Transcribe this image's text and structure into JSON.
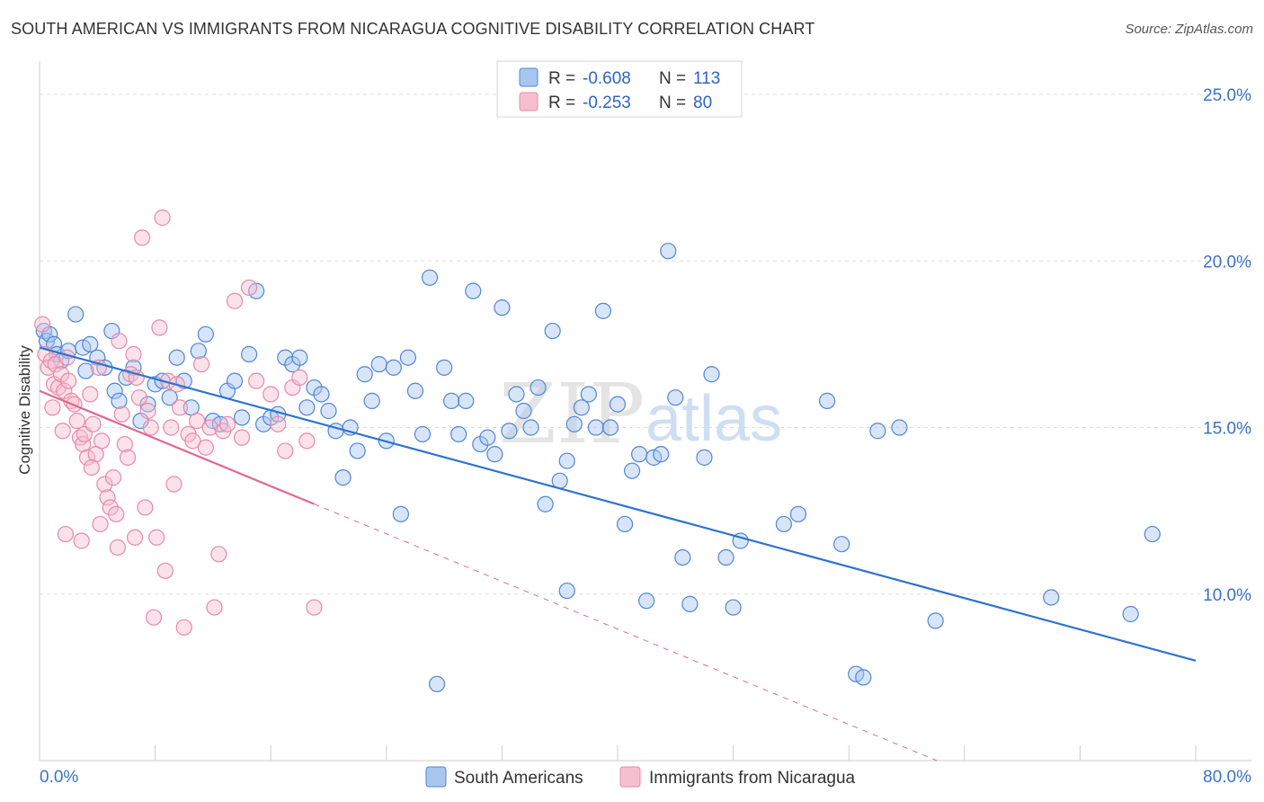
{
  "header": {
    "title": "SOUTH AMERICAN VS IMMIGRANTS FROM NICARAGUA COGNITIVE DISABILITY CORRELATION CHART",
    "source": "Source: ZipAtlas.com"
  },
  "watermark": {
    "part1": "ZIP",
    "part2": "atlas"
  },
  "colors": {
    "blue_fill": "#a9c6ef",
    "blue_stroke": "#4f86d6",
    "blue_line": "#2f72d0",
    "pink_fill": "#f6bfd0",
    "pink_stroke": "#e889a8",
    "pink_line": "#e0688f",
    "grid": "#dddddd",
    "tick_text": "#3b72c4"
  },
  "legend": {
    "rows": [
      {
        "r_label": "R =",
        "r_value": "-0.608",
        "n_label": "N =",
        "n_value": "113"
      },
      {
        "r_label": "R =",
        "r_value": "-0.253",
        "n_label": "N =",
        "n_value": "80"
      }
    ]
  },
  "chart_data": {
    "type": "scatter",
    "title": "SOUTH AMERICAN VS IMMIGRANTS FROM NICARAGUA COGNITIVE DISABILITY CORRELATION CHART",
    "xlabel": "",
    "ylabel": "Cognitive Disability",
    "xlim": [
      0,
      80
    ],
    "ylim": [
      5,
      26
    ],
    "x_tick_labels": [
      "0.0%",
      "80.0%"
    ],
    "y_ticks": [
      10,
      15,
      20,
      25
    ],
    "y_tick_labels": [
      "10.0%",
      "15.0%",
      "20.0%",
      "25.0%"
    ],
    "grid": true,
    "series": [
      {
        "name": "South Americans",
        "color": "blue",
        "r": -0.608,
        "n": 113,
        "trend": {
          "x0": 0,
          "y0": 17.4,
          "x1": 80,
          "y1": 8.0,
          "dashed_from_x": null
        },
        "points": [
          [
            0.3,
            17.9
          ],
          [
            0.5,
            17.6
          ],
          [
            0.7,
            17.8
          ],
          [
            1.0,
            17.5
          ],
          [
            1.2,
            17.2
          ],
          [
            1.5,
            17.0
          ],
          [
            2.0,
            17.3
          ],
          [
            2.5,
            18.4
          ],
          [
            3.0,
            17.4
          ],
          [
            3.2,
            16.7
          ],
          [
            3.5,
            17.5
          ],
          [
            4.0,
            17.1
          ],
          [
            4.5,
            16.8
          ],
          [
            5.0,
            17.9
          ],
          [
            5.2,
            16.1
          ],
          [
            5.5,
            15.8
          ],
          [
            6.0,
            16.5
          ],
          [
            6.5,
            16.8
          ],
          [
            7.0,
            15.2
          ],
          [
            7.5,
            15.7
          ],
          [
            8.0,
            16.3
          ],
          [
            8.5,
            16.4
          ],
          [
            9.0,
            15.9
          ],
          [
            9.5,
            17.1
          ],
          [
            10.0,
            16.4
          ],
          [
            10.5,
            15.6
          ],
          [
            11.0,
            17.3
          ],
          [
            11.5,
            17.8
          ],
          [
            12.0,
            15.2
          ],
          [
            12.5,
            15.1
          ],
          [
            13.0,
            16.1
          ],
          [
            13.5,
            16.4
          ],
          [
            14.0,
            15.3
          ],
          [
            14.5,
            17.2
          ],
          [
            15.0,
            19.1
          ],
          [
            15.5,
            15.1
          ],
          [
            16.0,
            15.3
          ],
          [
            16.5,
            15.4
          ],
          [
            17.0,
            17.1
          ],
          [
            17.5,
            16.9
          ],
          [
            18.0,
            17.1
          ],
          [
            18.5,
            15.6
          ],
          [
            19.0,
            16.2
          ],
          [
            19.5,
            16.0
          ],
          [
            20.0,
            15.5
          ],
          [
            20.5,
            14.9
          ],
          [
            21.0,
            13.5
          ],
          [
            21.5,
            15.0
          ],
          [
            22.0,
            14.3
          ],
          [
            22.5,
            16.6
          ],
          [
            23.0,
            15.8
          ],
          [
            23.5,
            16.9
          ],
          [
            24.0,
            14.6
          ],
          [
            24.5,
            16.8
          ],
          [
            25.0,
            12.4
          ],
          [
            25.5,
            17.1
          ],
          [
            26.0,
            16.1
          ],
          [
            26.5,
            14.8
          ],
          [
            27.0,
            19.5
          ],
          [
            27.5,
            7.3
          ],
          [
            28.0,
            16.8
          ],
          [
            28.5,
            15.8
          ],
          [
            29.0,
            14.8
          ],
          [
            29.5,
            15.8
          ],
          [
            30.0,
            19.1
          ],
          [
            30.5,
            14.5
          ],
          [
            31.0,
            14.7
          ],
          [
            31.5,
            14.2
          ],
          [
            32.0,
            18.6
          ],
          [
            32.5,
            14.9
          ],
          [
            33.0,
            16.0
          ],
          [
            33.5,
            15.5
          ],
          [
            34.0,
            15.0
          ],
          [
            34.5,
            16.2
          ],
          [
            35.0,
            12.7
          ],
          [
            35.5,
            17.9
          ],
          [
            36.0,
            13.4
          ],
          [
            36.5,
            14.0
          ],
          [
            37.0,
            15.1
          ],
          [
            37.5,
            15.6
          ],
          [
            38.0,
            16.0
          ],
          [
            38.5,
            15.0
          ],
          [
            39.0,
            18.5
          ],
          [
            39.5,
            15.0
          ],
          [
            40.0,
            15.7
          ],
          [
            40.5,
            12.1
          ],
          [
            41.0,
            13.7
          ],
          [
            41.5,
            14.2
          ],
          [
            42.0,
            9.8
          ],
          [
            42.5,
            14.1
          ],
          [
            43.0,
            14.2
          ],
          [
            43.5,
            20.3
          ],
          [
            44.0,
            15.9
          ],
          [
            44.5,
            11.1
          ],
          [
            45.0,
            9.7
          ],
          [
            46.0,
            14.1
          ],
          [
            46.5,
            16.6
          ],
          [
            47.5,
            11.1
          ],
          [
            48.5,
            11.6
          ],
          [
            51.5,
            12.1
          ],
          [
            52.5,
            12.4
          ],
          [
            54.5,
            15.8
          ],
          [
            55.5,
            11.5
          ],
          [
            56.5,
            7.6
          ],
          [
            57.0,
            7.5
          ],
          [
            58.0,
            14.9
          ],
          [
            59.5,
            15.0
          ],
          [
            70.0,
            9.9
          ],
          [
            77.0,
            11.8
          ],
          [
            75.5,
            9.4
          ],
          [
            62.0,
            9.2
          ],
          [
            48.0,
            9.6
          ],
          [
            36.5,
            10.1
          ]
        ]
      },
      {
        "name": "Immigrants from Nicaragua",
        "color": "pink",
        "r": -0.253,
        "n": 80,
        "trend": {
          "x0": 0,
          "y0": 16.1,
          "x1": 80,
          "y1": 1.8,
          "dashed_from_x": 19.0
        },
        "points": [
          [
            0.2,
            18.1
          ],
          [
            0.4,
            17.2
          ],
          [
            0.6,
            16.8
          ],
          [
            0.8,
            17.0
          ],
          [
            1.0,
            16.3
          ],
          [
            1.1,
            16.9
          ],
          [
            1.3,
            16.2
          ],
          [
            1.5,
            16.6
          ],
          [
            1.7,
            16.1
          ],
          [
            1.9,
            17.1
          ],
          [
            2.0,
            16.4
          ],
          [
            2.2,
            15.8
          ],
          [
            2.4,
            15.7
          ],
          [
            2.6,
            15.2
          ],
          [
            2.8,
            14.7
          ],
          [
            3.0,
            14.5
          ],
          [
            3.1,
            14.8
          ],
          [
            3.3,
            14.1
          ],
          [
            3.5,
            16.0
          ],
          [
            3.7,
            15.1
          ],
          [
            3.9,
            14.2
          ],
          [
            4.1,
            16.8
          ],
          [
            4.3,
            14.6
          ],
          [
            4.5,
            13.3
          ],
          [
            4.7,
            12.9
          ],
          [
            4.9,
            12.6
          ],
          [
            5.1,
            13.5
          ],
          [
            5.3,
            12.4
          ],
          [
            5.5,
            17.6
          ],
          [
            5.7,
            15.4
          ],
          [
            5.9,
            14.5
          ],
          [
            6.1,
            14.1
          ],
          [
            6.3,
            16.6
          ],
          [
            6.5,
            17.2
          ],
          [
            6.7,
            16.5
          ],
          [
            6.9,
            15.9
          ],
          [
            7.1,
            20.7
          ],
          [
            7.3,
            12.6
          ],
          [
            7.5,
            15.5
          ],
          [
            7.7,
            15.0
          ],
          [
            7.9,
            9.3
          ],
          [
            8.1,
            11.7
          ],
          [
            8.3,
            18.0
          ],
          [
            8.5,
            21.3
          ],
          [
            8.7,
            10.7
          ],
          [
            8.9,
            16.4
          ],
          [
            9.1,
            15.0
          ],
          [
            9.3,
            13.3
          ],
          [
            9.5,
            16.3
          ],
          [
            9.7,
            15.6
          ],
          [
            10.0,
            9.0
          ],
          [
            10.3,
            14.8
          ],
          [
            10.6,
            14.6
          ],
          [
            10.9,
            15.2
          ],
          [
            11.2,
            16.9
          ],
          [
            11.5,
            14.4
          ],
          [
            11.8,
            15.0
          ],
          [
            12.1,
            9.6
          ],
          [
            12.4,
            11.2
          ],
          [
            12.7,
            14.9
          ],
          [
            13.0,
            15.1
          ],
          [
            13.5,
            18.8
          ],
          [
            14.0,
            14.7
          ],
          [
            14.5,
            19.2
          ],
          [
            15.0,
            16.4
          ],
          [
            16.0,
            16.0
          ],
          [
            16.5,
            15.1
          ],
          [
            17.0,
            14.3
          ],
          [
            17.5,
            16.2
          ],
          [
            18.0,
            16.5
          ],
          [
            18.5,
            14.6
          ],
          [
            19.0,
            9.6
          ],
          [
            1.8,
            11.8
          ],
          [
            2.9,
            11.6
          ],
          [
            4.2,
            12.1
          ],
          [
            5.4,
            11.4
          ],
          [
            6.6,
            11.7
          ],
          [
            3.6,
            13.8
          ],
          [
            0.9,
            15.6
          ],
          [
            1.6,
            14.9
          ]
        ]
      }
    ],
    "legend_position": "top-center",
    "bottom_legend": [
      "South Americans",
      "Immigrants from Nicaragua"
    ]
  }
}
